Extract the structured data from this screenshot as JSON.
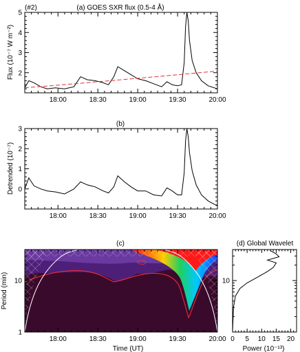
{
  "chart_data": [
    {
      "id": "a",
      "type": "line",
      "corner_label": "(#2)",
      "title": "(a) GOES SXR flux (0.5-4 Å)",
      "ylabel": "Flux (10⁻⁷ W m⁻²)",
      "xlabel": "",
      "xlim": [
        "17:35",
        "20:00"
      ],
      "ylim": [
        1,
        5
      ],
      "xticks": [
        "18:00",
        "18:30",
        "19:00",
        "19:30",
        "20:00"
      ],
      "yticks": [
        "2",
        "3",
        "4",
        "5"
      ],
      "series": [
        {
          "style": "solid",
          "color": "#000000",
          "x": [
            "17:35",
            "17:38",
            "17:42",
            "17:47",
            "17:52",
            "17:58",
            "18:05",
            "18:12",
            "18:17",
            "18:22",
            "18:28",
            "18:34",
            "18:38",
            "18:42",
            "18:45",
            "18:50",
            "18:55",
            "19:00",
            "19:06",
            "19:12",
            "19:18",
            "19:22",
            "19:26",
            "19:30",
            "19:33",
            "19:35",
            "19:36",
            "19:37",
            "19:38",
            "19:39",
            "19:41",
            "19:44",
            "19:48",
            "19:53",
            "20:00"
          ],
          "y": [
            1.25,
            1.6,
            1.5,
            1.3,
            1.2,
            1.25,
            1.2,
            1.3,
            1.8,
            1.65,
            1.6,
            1.5,
            1.4,
            1.8,
            2.3,
            2.1,
            1.9,
            1.7,
            1.6,
            1.45,
            1.3,
            1.55,
            1.4,
            1.35,
            1.4,
            2.5,
            4.3,
            5.0,
            4.6,
            3.6,
            2.6,
            2.0,
            1.6,
            1.35,
            1.2
          ]
        },
        {
          "style": "dashed",
          "color": "#e03030",
          "x": [
            "17:35",
            "18:00",
            "18:30",
            "19:00",
            "19:30",
            "20:00"
          ],
          "y": [
            1.25,
            1.38,
            1.55,
            1.72,
            1.9,
            2.08
          ]
        }
      ]
    },
    {
      "id": "b",
      "type": "line",
      "title": "(b)",
      "ylabel": "Detrended (10⁻⁷)",
      "xlabel": "",
      "xlim": [
        "17:35",
        "20:00"
      ],
      "ylim": [
        -1,
        3
      ],
      "xticks": [
        "18:00",
        "18:30",
        "19:00",
        "19:30",
        "20:00"
      ],
      "yticks": [
        "0",
        "1",
        "2",
        "3"
      ],
      "series": [
        {
          "style": "solid",
          "color": "#000000",
          "x": [
            "17:35",
            "17:38",
            "17:42",
            "17:47",
            "17:52",
            "17:58",
            "18:05",
            "18:12",
            "18:17",
            "18:22",
            "18:28",
            "18:34",
            "18:38",
            "18:42",
            "18:45",
            "18:50",
            "18:55",
            "19:00",
            "19:06",
            "19:12",
            "19:18",
            "19:22",
            "19:26",
            "19:30",
            "19:33",
            "19:35",
            "19:36",
            "19:37",
            "19:38",
            "19:39",
            "19:41",
            "19:44",
            "19:48",
            "19:53",
            "20:00"
          ],
          "y": [
            0.0,
            0.55,
            0.15,
            0.0,
            -0.1,
            -0.15,
            -0.25,
            0.0,
            0.35,
            0.2,
            0.1,
            -0.1,
            -0.2,
            0.1,
            0.65,
            0.35,
            0.1,
            -0.1,
            -0.1,
            -0.3,
            -0.35,
            0.05,
            -0.1,
            -0.3,
            -0.3,
            0.8,
            2.4,
            3.0,
            2.6,
            1.8,
            0.9,
            0.2,
            -0.3,
            -0.6,
            -0.85
          ]
        }
      ]
    },
    {
      "id": "c",
      "type": "heatmap",
      "title": "(c)",
      "xlabel": "Time (UT)",
      "ylabel": "Period (min)",
      "xlim": [
        "17:35",
        "20:00"
      ],
      "ylim": [
        1,
        40
      ],
      "yscale": "log",
      "xticks": [
        "18:00",
        "18:30",
        "19:00",
        "19:30",
        "20:00"
      ],
      "yticks": [
        "1",
        "10"
      ],
      "colors": {
        "background": "#3a0a2c",
        "low": "#5a2a80",
        "mid": "#2050ff",
        "high": "#ff1a1a"
      }
    },
    {
      "id": "d",
      "type": "line",
      "title": "(d) Global Wavelet",
      "xlabel": "Power (10⁻¹³)",
      "ylabel": "",
      "xlim": [
        0,
        22
      ],
      "ylim": [
        1,
        40
      ],
      "yscale": "log",
      "xticks": [
        "0",
        "5",
        "10",
        "15",
        "20"
      ],
      "yticks": [
        "10"
      ],
      "series": [
        {
          "style": "solid",
          "color": "#000000",
          "power": [
            0,
            0.3,
            1.0,
            2.5,
            5,
            9,
            12,
            14,
            15,
            12,
            16,
            15,
            13
          ],
          "period": [
            1,
            3,
            5,
            7,
            9,
            12,
            15,
            18,
            22,
            25,
            29,
            33,
            38
          ]
        }
      ]
    }
  ]
}
